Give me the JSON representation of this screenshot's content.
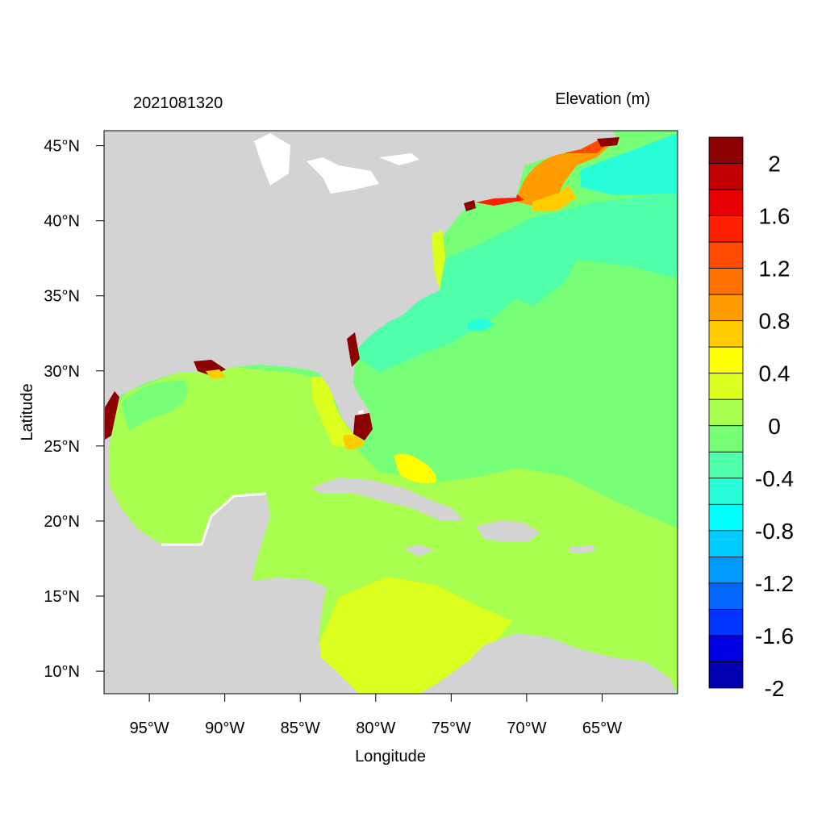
{
  "map": {
    "left_title": "2021081320",
    "right_title": "Elevation (m)",
    "xlabel": "Longitude",
    "ylabel": "Latitude",
    "xlim": [
      -98,
      -60
    ],
    "ylim": [
      8.5,
      46
    ],
    "lon_ticks": [
      {
        "value": -95,
        "label": "95°W"
      },
      {
        "value": -90,
        "label": "90°W"
      },
      {
        "value": -85,
        "label": "85°W"
      },
      {
        "value": -80,
        "label": "80°W"
      },
      {
        "value": -75,
        "label": "75°W"
      },
      {
        "value": -70,
        "label": "70°W"
      },
      {
        "value": -65,
        "label": "65°W"
      }
    ],
    "lat_ticks": [
      {
        "value": 45,
        "label": "45°N"
      },
      {
        "value": 40,
        "label": "40°N"
      },
      {
        "value": 35,
        "label": "35°N"
      },
      {
        "value": 30,
        "label": "30°N"
      },
      {
        "value": 25,
        "label": "25°N"
      },
      {
        "value": 20,
        "label": "20°N"
      },
      {
        "value": 15,
        "label": "15°N"
      },
      {
        "value": 10,
        "label": "10°N"
      }
    ],
    "land_color": "#d3d3d3"
  },
  "colorbar": {
    "colors": [
      "#8b0000",
      "#c00000",
      "#e80000",
      "#ff2000",
      "#ff4a00",
      "#ff7000",
      "#ff9c00",
      "#ffcc00",
      "#ffff00",
      "#ddff20",
      "#a8ff50",
      "#78ff78",
      "#50ffa8",
      "#28ffd8",
      "#00ffff",
      "#00ccff",
      "#0099ff",
      "#0066ff",
      "#0033ff",
      "#0000e0",
      "#0000b0"
    ],
    "labels": [
      "2",
      "1.6",
      "1.2",
      "0.8",
      "0.4",
      "0",
      "-0.4",
      "-0.8",
      "-1.2",
      "-1.6",
      "-2"
    ]
  }
}
